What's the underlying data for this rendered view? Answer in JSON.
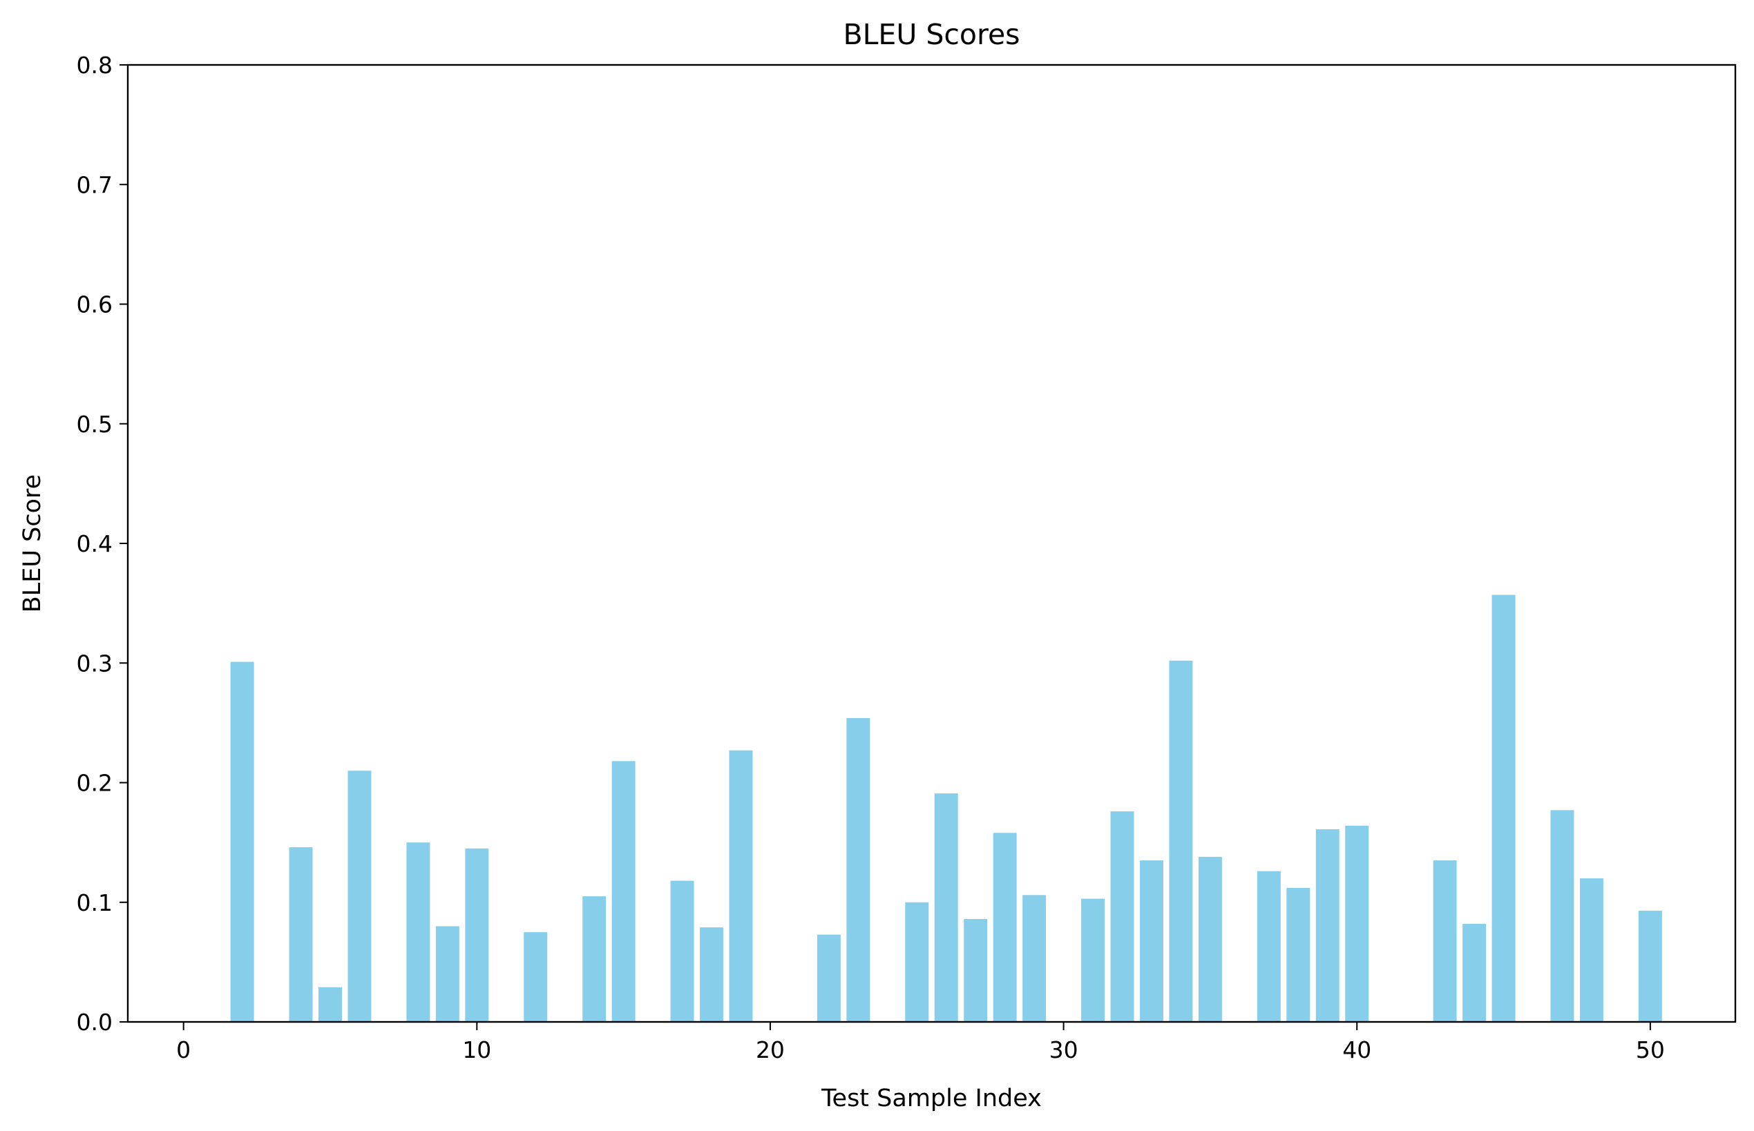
{
  "chart_data": {
    "type": "bar",
    "title": "BLEU Scores",
    "xlabel": "Test Sample Index",
    "ylabel": "BLEU Score",
    "xlim": [
      -1.9,
      52.9
    ],
    "ylim": [
      0,
      0.8
    ],
    "xticks": [
      0,
      10,
      20,
      30,
      40,
      50
    ],
    "xtick_labels": [
      "0",
      "10",
      "20",
      "30",
      "40",
      "50"
    ],
    "yticks": [
      0.0,
      0.1,
      0.2,
      0.3,
      0.4,
      0.5,
      0.6,
      0.7,
      0.8
    ],
    "ytick_labels": [
      "0.0",
      "0.1",
      "0.2",
      "0.3",
      "0.4",
      "0.5",
      "0.6",
      "0.7",
      "0.8"
    ],
    "grid": false,
    "bar_width": 0.8,
    "color": "#87ceeb",
    "x": [
      0,
      1,
      2,
      3,
      4,
      5,
      6,
      7,
      8,
      9,
      10,
      11,
      12,
      13,
      14,
      15,
      16,
      17,
      18,
      19,
      20,
      21,
      22,
      23,
      24,
      25,
      26,
      27,
      28,
      29,
      30,
      31,
      32,
      33,
      34,
      35,
      36,
      37,
      38,
      39,
      40,
      41,
      42,
      43,
      44,
      45,
      46,
      47,
      48,
      49,
      50
    ],
    "values": [
      0,
      0,
      0.301,
      0,
      0.146,
      0.029,
      0.21,
      0,
      0.15,
      0.08,
      0.145,
      0,
      0.075,
      0,
      0.105,
      0.218,
      0,
      0.118,
      0.079,
      0.227,
      0,
      0,
      0.073,
      0.254,
      0,
      0.1,
      0.191,
      0.086,
      0.158,
      0.106,
      0,
      0.103,
      0.176,
      0.135,
      0.302,
      0.138,
      0,
      0.126,
      0.112,
      0.161,
      0.164,
      0,
      0,
      0.135,
      0.082,
      0.357,
      0,
      0.177,
      0.12,
      0,
      0.093
    ]
  }
}
